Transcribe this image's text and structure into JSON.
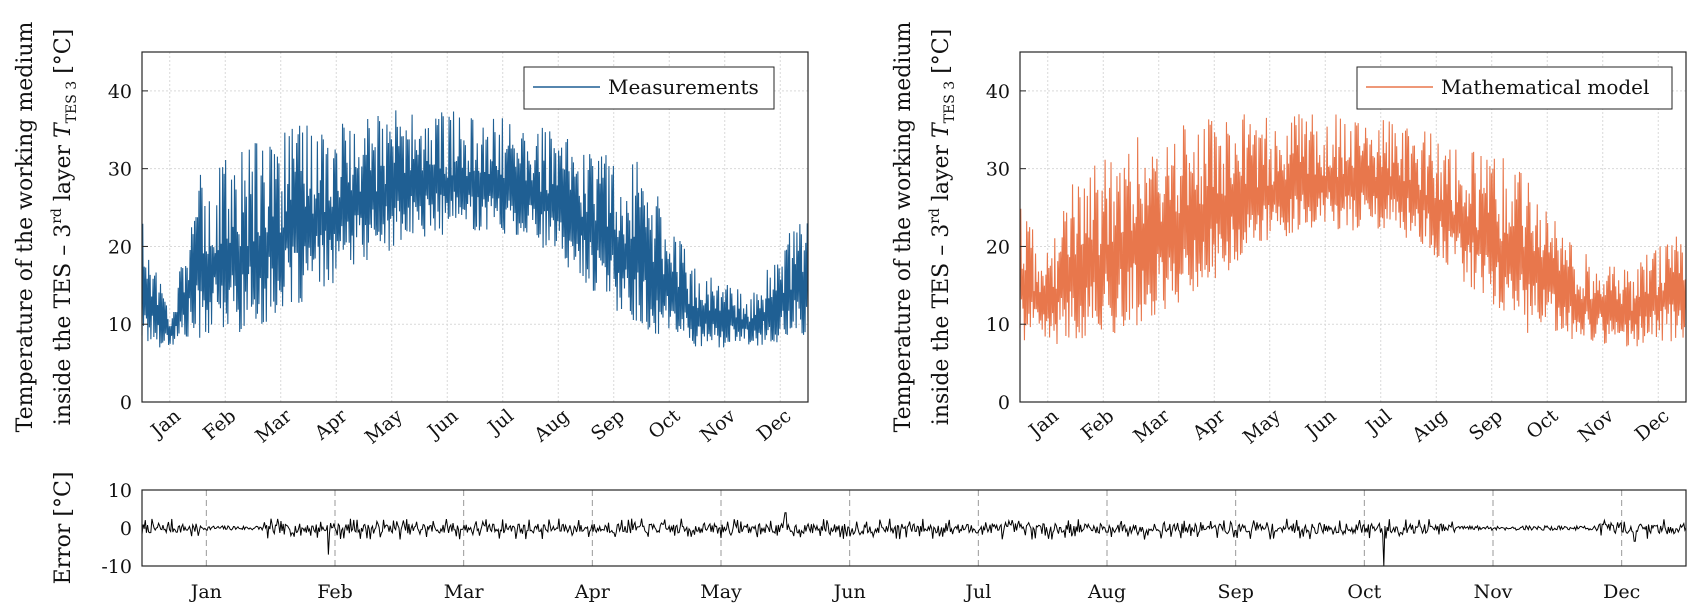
{
  "chart_data": [
    {
      "id": "measurements",
      "type": "line",
      "ylabel_line1": "Temperature of the working medium",
      "ylabel_line2_pre": "inside the TES – 3",
      "ylabel_sup": "rd",
      "ylabel_line2_mid": " layer ",
      "ylabel_sym": "T",
      "ylabel_sub": "TES 3",
      "ylabel_unit": " [°C]",
      "ylim": [
        0,
        45
      ],
      "yticks": [
        0,
        10,
        20,
        30,
        40
      ],
      "xticks": [
        "Jan",
        "Feb",
        "Mar",
        "Apr",
        "May",
        "Jun",
        "Jul",
        "Aug",
        "Sep",
        "Oct",
        "Nov",
        "Dec"
      ],
      "legend": "Measurements",
      "legend_position": "top-right",
      "grid": true,
      "color": "#1f5f93",
      "seed": 17,
      "envelope": [
        {
          "m": 0.0,
          "lo": 7,
          "hi": 25
        },
        {
          "m": 0.5,
          "lo": 7,
          "hi": 12
        },
        {
          "m": 1.0,
          "lo": 8,
          "hi": 29
        },
        {
          "m": 2.0,
          "lo": 9,
          "hi": 34
        },
        {
          "m": 3.0,
          "lo": 13,
          "hi": 36
        },
        {
          "m": 4.0,
          "lo": 18,
          "hi": 37
        },
        {
          "m": 5.0,
          "lo": 21,
          "hi": 38
        },
        {
          "m": 6.0,
          "lo": 22,
          "hi": 37
        },
        {
          "m": 7.0,
          "lo": 21,
          "hi": 36
        },
        {
          "m": 8.0,
          "lo": 15,
          "hi": 33
        },
        {
          "m": 9.0,
          "lo": 9,
          "hi": 31
        },
        {
          "m": 10.0,
          "lo": 7,
          "hi": 17
        },
        {
          "m": 11.0,
          "lo": 7,
          "hi": 14
        },
        {
          "m": 12.0,
          "lo": 8,
          "hi": 26
        }
      ]
    },
    {
      "id": "model",
      "type": "line",
      "ylabel_line1": "Temperature of the working medium",
      "ylabel_line2_pre": "inside the TES – 3",
      "ylabel_sup": "rd",
      "ylabel_line2_mid": " layer ",
      "ylabel_sym": "T",
      "ylabel_sub": "TES 3",
      "ylabel_unit": " [°C]",
      "ylim": [
        0,
        45
      ],
      "yticks": [
        0,
        10,
        20,
        30,
        40
      ],
      "xticks": [
        "Jan",
        "Feb",
        "Mar",
        "Apr",
        "May",
        "Jun",
        "Jul",
        "Aug",
        "Sep",
        "Oct",
        "Nov",
        "Dec"
      ],
      "legend": "Mathematical model",
      "legend_position": "top-right",
      "grid": true,
      "color": "#e8774c",
      "seed": 41,
      "envelope": [
        {
          "m": 0.0,
          "lo": 8,
          "hi": 25
        },
        {
          "m": 0.5,
          "lo": 7,
          "hi": 20
        },
        {
          "m": 1.0,
          "lo": 8,
          "hi": 29
        },
        {
          "m": 2.0,
          "lo": 9,
          "hi": 34
        },
        {
          "m": 3.0,
          "lo": 13,
          "hi": 36
        },
        {
          "m": 4.0,
          "lo": 18,
          "hi": 37
        },
        {
          "m": 5.0,
          "lo": 22,
          "hi": 37
        },
        {
          "m": 6.0,
          "lo": 22,
          "hi": 37
        },
        {
          "m": 7.0,
          "lo": 21,
          "hi": 36
        },
        {
          "m": 8.0,
          "lo": 15,
          "hi": 33
        },
        {
          "m": 9.0,
          "lo": 9,
          "hi": 31
        },
        {
          "m": 10.0,
          "lo": 8,
          "hi": 20
        },
        {
          "m": 11.0,
          "lo": 7,
          "hi": 17
        },
        {
          "m": 12.0,
          "lo": 8,
          "hi": 24
        }
      ]
    },
    {
      "id": "error",
      "type": "line",
      "ylabel": "Error [°C]",
      "ylim": [
        -10,
        10
      ],
      "yticks": [
        -10,
        0,
        10
      ],
      "xticks": [
        "Jan",
        "Feb",
        "Mar",
        "Apr",
        "May",
        "Jun",
        "Jul",
        "Aug",
        "Sep",
        "Oct",
        "Nov",
        "Dec"
      ],
      "grid": true,
      "color": "#000000",
      "seed": 7,
      "amplitude": 2.5,
      "spikes": [
        {
          "m": 1.45,
          "v": -7
        },
        {
          "m": 5.0,
          "v": 4
        },
        {
          "m": 9.65,
          "v": -10
        },
        {
          "m": 11.6,
          "v": -3.5
        }
      ]
    }
  ]
}
